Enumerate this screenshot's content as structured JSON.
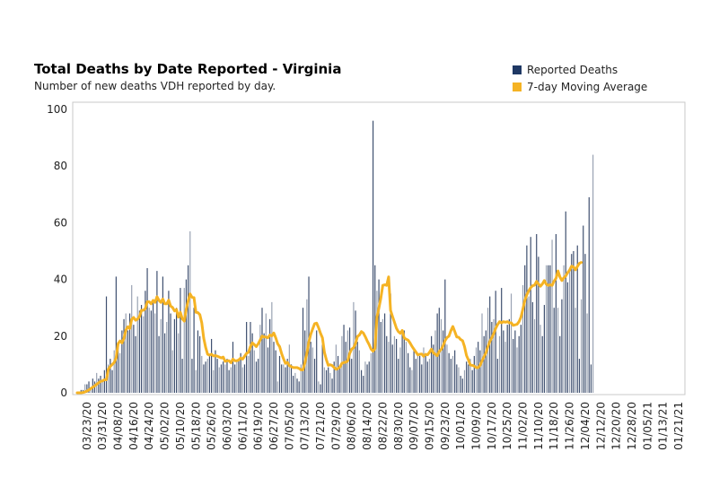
{
  "chart_data": {
    "type": "bar",
    "title": "Total Deaths by Date Reported - Virginia",
    "subtitle": "Number of new deaths VDH reported by day.",
    "legend": [
      {
        "name": "Reported Deaths",
        "color": "#1f3864"
      },
      {
        "name": "7-day Moving Average",
        "color": "#f5b324"
      }
    ],
    "legend_position": "top-right",
    "ylim": [
      0,
      100
    ],
    "yticks": [
      0,
      20,
      40,
      60,
      80,
      100
    ],
    "xticks": [
      "03/23/20",
      "03/31/20",
      "04/08/20",
      "04/16/20",
      "04/24/20",
      "05/02/20",
      "05/10/20",
      "05/18/20",
      "05/26/20",
      "06/03/20",
      "06/11/20",
      "06/19/20",
      "06/27/20",
      "07/05/20",
      "07/13/20",
      "07/21/20",
      "07/29/20",
      "08/06/20",
      "08/14/20",
      "08/22/20",
      "08/30/20",
      "09/07/20",
      "09/15/20",
      "09/23/20",
      "10/01/20",
      "10/09/20",
      "10/17/20",
      "10/25/20",
      "11/02/20",
      "11/10/20",
      "11/18/20",
      "11/26/20",
      "12/04/20",
      "12/12/20",
      "12/20/20",
      "12/28/20",
      "01/05/21",
      "01/13/21",
      "01/21/21"
    ],
    "x_start": "03/18/20",
    "x_end": "01/21/21",
    "grid": false,
    "series": [
      {
        "name": "Reported Deaths",
        "values": [
          0,
          0,
          1,
          1,
          3,
          3,
          4,
          2,
          5,
          4,
          7,
          5,
          6,
          4,
          8,
          34,
          10,
          12,
          8,
          15,
          41,
          18,
          14,
          22,
          26,
          28,
          22,
          28,
          38,
          24,
          20,
          34,
          29,
          31,
          27,
          36,
          44,
          30,
          29,
          33,
          28,
          43,
          20,
          26,
          41,
          21,
          25,
          36,
          28,
          15,
          26,
          30,
          21,
          37,
          12,
          37,
          40,
          45,
          57,
          12,
          30,
          8,
          22,
          20,
          13,
          10,
          11,
          12,
          13,
          19,
          8,
          15,
          12,
          9,
          10,
          11,
          10,
          12,
          8,
          9,
          18,
          10,
          11,
          12,
          14,
          9,
          10,
          25,
          13,
          25,
          21,
          15,
          11,
          12,
          24,
          30,
          21,
          28,
          16,
          26,
          32,
          18,
          15,
          4,
          13,
          10,
          10,
          9,
          12,
          17,
          10,
          6,
          7,
          5,
          4,
          10,
          30,
          22,
          33,
          41,
          18,
          16,
          12,
          22,
          4,
          3,
          17,
          9,
          8,
          9,
          7,
          5,
          11,
          17,
          13,
          9,
          20,
          24,
          18,
          22,
          23,
          12,
          32,
          29,
          18,
          15,
          8,
          6,
          11,
          10,
          11,
          14,
          96,
          45,
          36,
          40,
          25,
          26,
          28,
          20,
          18,
          35,
          17,
          20,
          19,
          12,
          16,
          21,
          22,
          18,
          14,
          9,
          8,
          15,
          12,
          14,
          13,
          10,
          16,
          13,
          11,
          12,
          20,
          17,
          22,
          28,
          30,
          26,
          22,
          40,
          17,
          14,
          12,
          13,
          15,
          10,
          9,
          6,
          5,
          8,
          11,
          10,
          12,
          8,
          13,
          16,
          18,
          15,
          28,
          20,
          22,
          30,
          34,
          25,
          26,
          36,
          12,
          20,
          37,
          22,
          18,
          24,
          26,
          35,
          19,
          22,
          16,
          20,
          24,
          38,
          45,
          52,
          34,
          55,
          32,
          26,
          56,
          48,
          24,
          20,
          31,
          45,
          45,
          45,
          54,
          30,
          56,
          30,
          20,
          33,
          45,
          64,
          39,
          43,
          49,
          50,
          30,
          52,
          12,
          33,
          59,
          49,
          28,
          69,
          10,
          84
        ]
      },
      {
        "name": "7-day Moving Average",
        "values": [
          0,
          0,
          0,
          0.1,
          0.3,
          0.6,
          1,
          1.5,
          2,
          2.4,
          3,
          3.5,
          4,
          4.2,
          4.6,
          4.6,
          8.3,
          9.3,
          10,
          10.7,
          12.3,
          17.3,
          18.3,
          17.6,
          19.2,
          22.1,
          23.3,
          22.7,
          25.9,
          26.6,
          25.6,
          26,
          26.9,
          29.1,
          29.1,
          29.7,
          32.1,
          32.1,
          31.4,
          32.6,
          31.9,
          33.9,
          32.6,
          31.9,
          33.1,
          31.4,
          31.4,
          32.7,
          30.6,
          30.1,
          28.9,
          29.4,
          26.7,
          28.4,
          26.1,
          25.3,
          29.4,
          32.4,
          34.9,
          33.7,
          33.6,
          28.4,
          28.3,
          27.6,
          24.7,
          19.3,
          16,
          13.6,
          13.3,
          13.6,
          13,
          13.1,
          12.9,
          12.6,
          12.3,
          12.6,
          11.1,
          11.3,
          11.3,
          10.6,
          11.9,
          11.3,
          11.3,
          11.6,
          12.3,
          11.9,
          12.9,
          13.9,
          14.3,
          16.3,
          17.6,
          17,
          16.3,
          17.3,
          18.6,
          20,
          19.7,
          19.7,
          19.4,
          20.4,
          20.1,
          21.1,
          19.4,
          17.3,
          16.3,
          13.9,
          12,
          10.4,
          10.7,
          9.6,
          9.2,
          8.9,
          8.9,
          8.9,
          8.6,
          8.1,
          8.1,
          10.6,
          13.9,
          17.9,
          20.7,
          22.6,
          24.4,
          24.6,
          23,
          21,
          19.4,
          14.3,
          11.7,
          9.7,
          9.9,
          9.6,
          8.9,
          8.3,
          8.6,
          9.1,
          10.4,
          10.7,
          10.8,
          11.3,
          13.9,
          15.4,
          15.9,
          17.4,
          19.9,
          20.4,
          21.6,
          21.1,
          19.8,
          18.3,
          17,
          15.4,
          14.7,
          15.6,
          26.7,
          29.9,
          33.4,
          37.9,
          38.1,
          37.9,
          40.9,
          29.1,
          26.9,
          24.9,
          22.8,
          21.6,
          21,
          22,
          19.4,
          18.9,
          18.6,
          17.6,
          16.4,
          15.4,
          14.4,
          13.4,
          13.6,
          13.7,
          12.9,
          13.6,
          13.4,
          14.3,
          15.4,
          14.1,
          13.6,
          13.1,
          14.6,
          15.3,
          16.6,
          18.4,
          19.5,
          20,
          21.9,
          23.4,
          21.6,
          19.7,
          19.6,
          18.8,
          18.4,
          16.3,
          13.2,
          11.6,
          9.8,
          9.7,
          9.4,
          8.9,
          8.9,
          9.7,
          11.3,
          12.7,
          14.1,
          16.3,
          18.1,
          19.4,
          20.9,
          22.7,
          24.1,
          25.1,
          24.7,
          25.1,
          24.9,
          25.1,
          24.7,
          24.7,
          23.8,
          24,
          24.2,
          25.1,
          26.7,
          29.6,
          32.6,
          34.6,
          36,
          37.1,
          37.8,
          38,
          39.3,
          38.4,
          37.6,
          38.4,
          39.6,
          38.3,
          37.9,
          38.1,
          37.9,
          39.4,
          40.4,
          43,
          40.9,
          39.6,
          40.6,
          41.2,
          42.4,
          43.3,
          44.7,
          44.4,
          43.4,
          44.6,
          45.7,
          46
        ]
      }
    ]
  }
}
